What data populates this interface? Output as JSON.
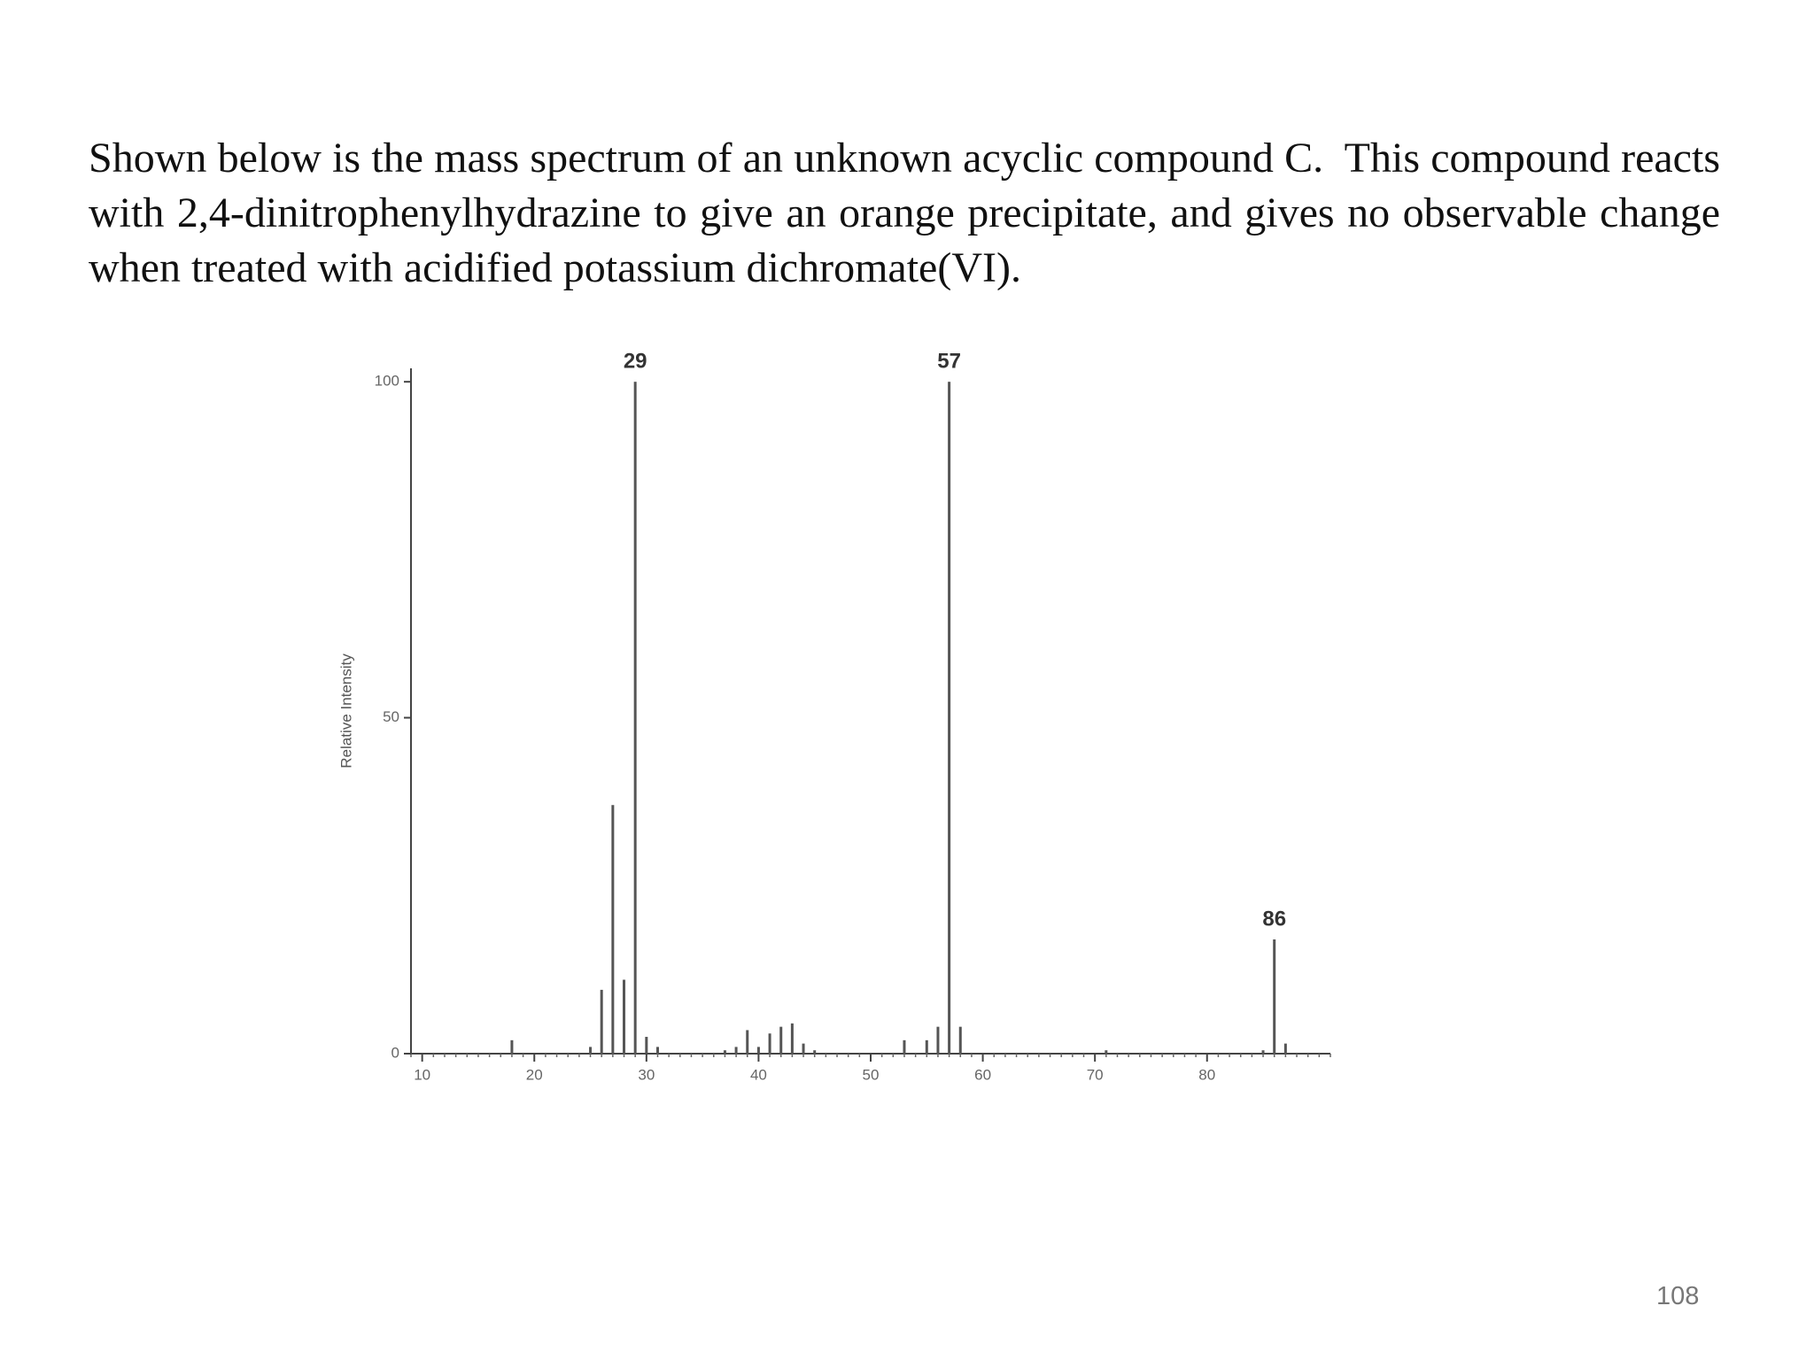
{
  "slide": {
    "text": "Shown below is the mass spectrum of an unknown acyclic compound C.  This compound reacts with 2,4-dinitrophenylhydrazine to give an orange precipitate, and gives no observable change when treated with acidified potassium dichromate(VI).",
    "page_number": "108"
  },
  "chart_data": {
    "type": "stem",
    "y_label": "Relative Intensity",
    "x": [
      18,
      25,
      26,
      27,
      28,
      29,
      30,
      31,
      37,
      38,
      39,
      40,
      41,
      42,
      43,
      44,
      45,
      53,
      55,
      56,
      57,
      58,
      71,
      85,
      86,
      87
    ],
    "values": [
      2,
      1,
      9.5,
      37,
      11,
      100,
      2.5,
      1,
      0.5,
      1,
      3.5,
      1,
      3,
      4,
      4.5,
      1.5,
      0.5,
      2,
      2,
      4,
      100,
      4,
      0.5,
      0.5,
      17,
      1.5
    ],
    "color": "#555555",
    "annotations": [
      29,
      57,
      86
    ],
    "xlim": [
      9,
      91
    ],
    "xticks": [
      10,
      20,
      30,
      40,
      50,
      60,
      70,
      80
    ],
    "ylim": [
      0,
      102
    ],
    "yticks": [
      0,
      50,
      100
    ]
  }
}
